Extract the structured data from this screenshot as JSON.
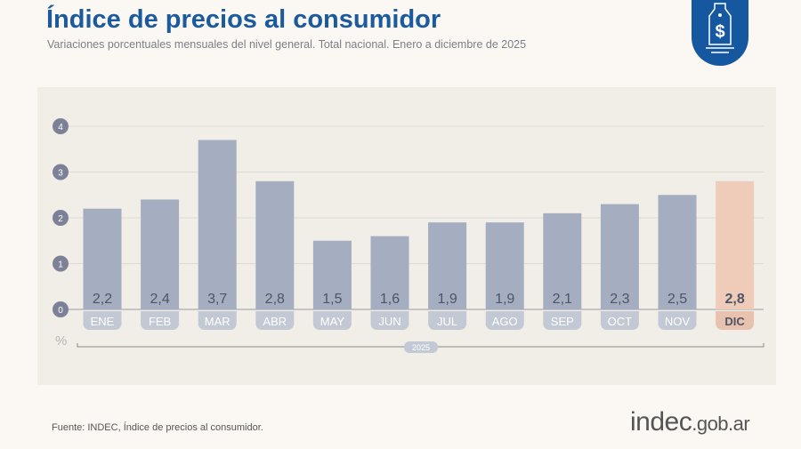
{
  "header": {
    "title": "Índice de precios al consumidor",
    "subtitle": "Variaciones porcentuales mensuales del nivel general. Total nacional. Enero a diciembre de 2025",
    "icon": "price-tag-dollar-icon"
  },
  "footer": {
    "source": "Fuente: INDEC, Índice de precios al consumidor.",
    "logo_main": "indec",
    "logo_suffix": ".gob.ar"
  },
  "chart_data": {
    "type": "bar",
    "categories": [
      "ENE",
      "FEB",
      "MAR",
      "ABR",
      "MAY",
      "JUN",
      "JUL",
      "AGO",
      "SEP",
      "OCT",
      "NOV",
      "DIC"
    ],
    "values": [
      2.2,
      2.4,
      3.7,
      2.8,
      1.5,
      1.6,
      1.9,
      1.9,
      2.1,
      2.3,
      2.5,
      2.8
    ],
    "value_labels": [
      "2,2",
      "2,4",
      "3,7",
      "2,8",
      "1,5",
      "1,6",
      "1,9",
      "1,9",
      "2,1",
      "2,3",
      "2,5",
      "2,8"
    ],
    "yticks": [
      "0",
      "1",
      "2",
      "3",
      "4"
    ],
    "ylim": [
      0,
      4
    ],
    "ylabel": "%",
    "group_label": "2025",
    "grid": true,
    "colors": {
      "bar": "#a4aec0",
      "highlight": "#efcbb9",
      "highlight_label": "#e9c2ae",
      "axis_marker": "#7d8197"
    }
  }
}
